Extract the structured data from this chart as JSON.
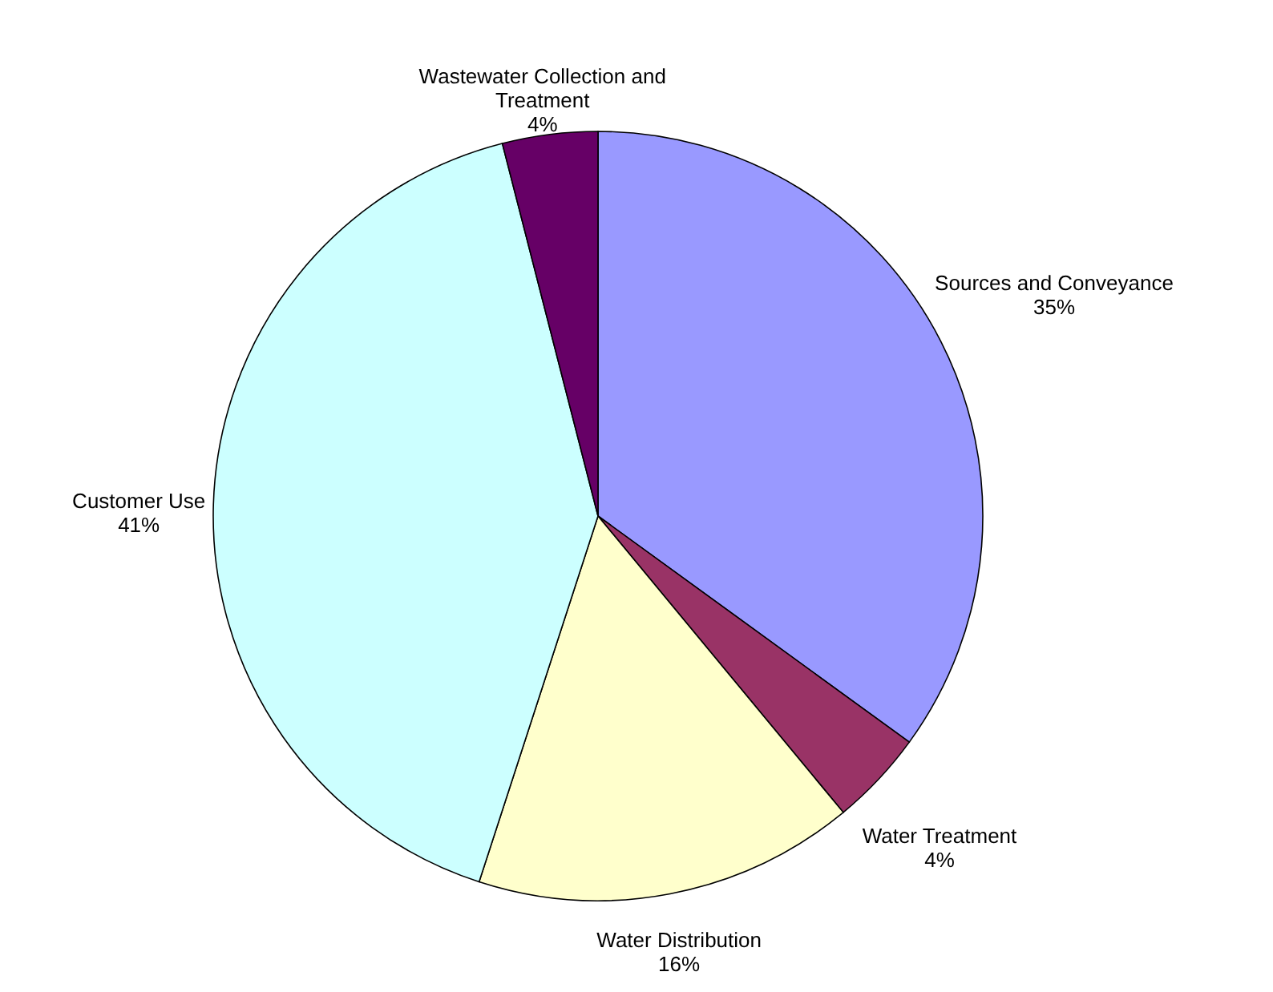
{
  "chart_data": {
    "type": "pie",
    "categories": [
      "Sources and Conveyance",
      "Water Treatment",
      "Water Distribution",
      "Customer Use",
      "Wastewater Collection and Treatment"
    ],
    "values": [
      35,
      4,
      16,
      41,
      4
    ],
    "value_labels": [
      "35%",
      "4%",
      "16%",
      "41%",
      "4%"
    ],
    "colors": [
      "#9999ff",
      "#993366",
      "#ffffcc",
      "#ccffff",
      "#660066"
    ]
  }
}
